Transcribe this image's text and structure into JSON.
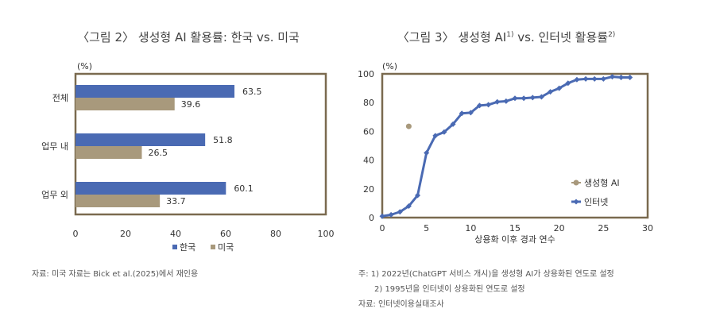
{
  "chart_data": [
    {
      "type": "bar",
      "orientation": "horizontal",
      "title": "〈그림 2〉 생성형 AI 활용률: 한국 vs. 미국",
      "ylabel_unit": "(%)",
      "categories": [
        "전체",
        "업무 내",
        "업무 외"
      ],
      "series": [
        {
          "name": "한국",
          "values": [
            63.5,
            51.8,
            60.1
          ],
          "color": "#4a6ab3"
        },
        {
          "name": "미국",
          "values": [
            39.6,
            26.5,
            33.7
          ],
          "color": "#a8997c"
        }
      ],
      "value_labels": [
        [
          "63.5",
          "51.8",
          "60.1"
        ],
        [
          "39.6",
          "26.5",
          "33.7"
        ]
      ],
      "xlim": [
        0,
        100
      ],
      "xticks": [
        "0",
        "20",
        "40",
        "60",
        "80",
        "100"
      ],
      "legend": "bottom",
      "grid": false,
      "source": "자료: 미국 자료는 Bick et al.(2025)에서 재인용"
    },
    {
      "type": "line",
      "title": "〈그림 3〉 생성형 AI",
      "title_sup1": "1)",
      "title_mid": " vs. 인터넷 활용률",
      "title_sup2": "2)",
      "ylabel_unit": "(%)",
      "xlabel": "상용화 이후 경과 연수",
      "xlim": [
        0,
        30
      ],
      "ylim": [
        0,
        100
      ],
      "xticks": [
        "0",
        "5",
        "10",
        "15",
        "20",
        "25",
        "30"
      ],
      "yticks": [
        "0",
        "20",
        "40",
        "60",
        "80",
        "100"
      ],
      "series": [
        {
          "name": "생성형 AI",
          "type": "scatter",
          "color": "#a8997c",
          "x": [
            3
          ],
          "y": [
            63.5
          ]
        },
        {
          "name": "인터넷",
          "type": "line",
          "color": "#4a6ab3",
          "x": [
            0,
            1,
            2,
            3,
            4,
            5,
            6,
            7,
            8,
            9,
            10,
            11,
            12,
            13,
            14,
            15,
            16,
            17,
            18,
            19,
            20,
            21,
            22,
            23,
            24,
            25,
            26,
            27,
            28
          ],
          "y": [
            1,
            2,
            4,
            8,
            15.5,
            45,
            57,
            59.5,
            65,
            72.5,
            73,
            78,
            78.5,
            80.5,
            81,
            83,
            83,
            83.5,
            84,
            87.5,
            90,
            93.5,
            96,
            96.5,
            96.5,
            96.5,
            98,
            97.5,
            97.5
          ]
        }
      ],
      "legend": "bottom-right",
      "grid": false,
      "notes": [
        "주: 1) 2022년(ChatGPT 서비스 개시)을 생성형 AI가 상용화된 연도로 설정",
        "2) 1995년을 인터넷이 상용화된 연도로 설정",
        "자료: 인터넷이용실태조사"
      ]
    }
  ]
}
